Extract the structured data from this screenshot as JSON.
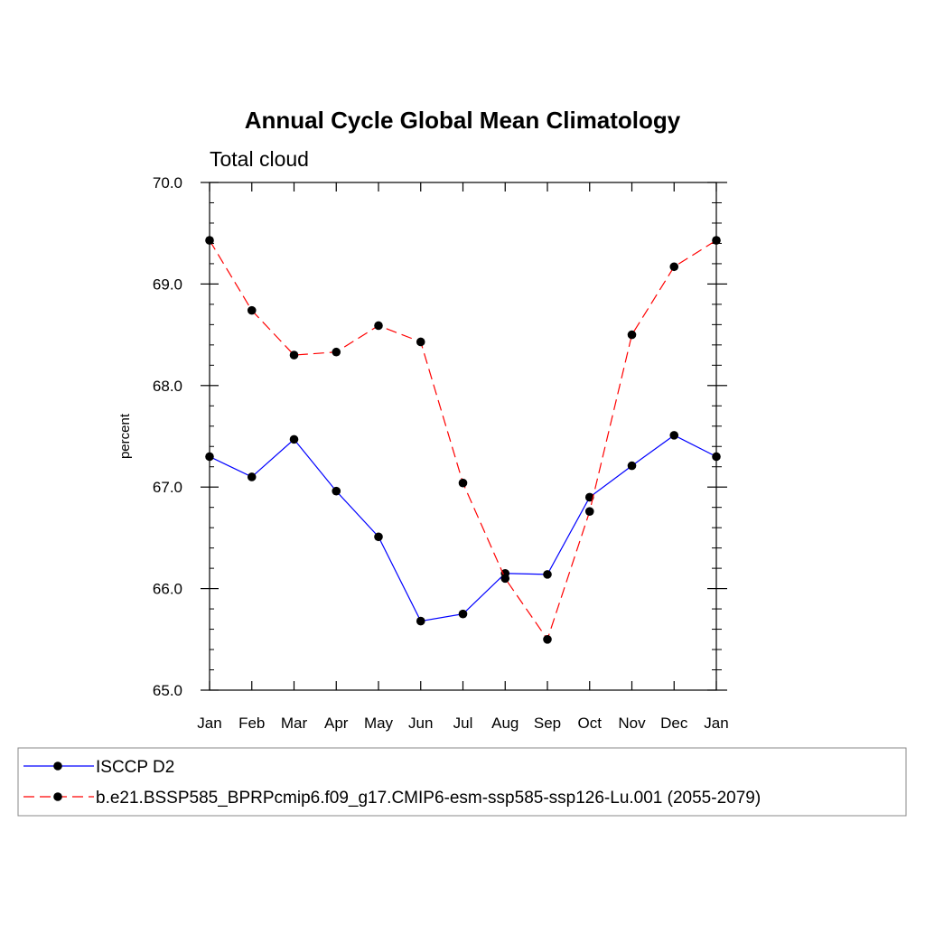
{
  "chart_data": {
    "type": "line",
    "title": "Annual Cycle Global Mean Climatology",
    "subtitle": "Total cloud",
    "xlabel": "",
    "ylabel": "percent",
    "categories": [
      "Jan",
      "Feb",
      "Mar",
      "Apr",
      "May",
      "Jun",
      "Jul",
      "Aug",
      "Sep",
      "Oct",
      "Nov",
      "Dec",
      "Jan"
    ],
    "ylim": [
      65.0,
      70.0
    ],
    "yticks": [
      "65.0",
      "66.0",
      "67.0",
      "68.0",
      "69.0",
      "70.0"
    ],
    "grid": false,
    "legend_position": "bottom",
    "series": [
      {
        "name": "ISCCP D2",
        "color": "#0000ff",
        "dash": "solid",
        "marker_color": "#000000",
        "values": [
          67.3,
          67.1,
          67.47,
          66.96,
          66.51,
          65.68,
          65.75,
          66.15,
          66.14,
          66.9,
          67.21,
          67.51,
          67.3
        ]
      },
      {
        "name": "b.e21.BSSP585_BPRPcmip6.f09_g17.CMIP6-esm-ssp585-ssp126-Lu.001 (2055-2079)",
        "color": "#ff0000",
        "dash": "dashed",
        "marker_color": "#000000",
        "values": [
          69.43,
          68.74,
          68.3,
          68.33,
          68.59,
          68.43,
          67.04,
          66.1,
          65.5,
          66.76,
          68.5,
          69.17,
          69.43
        ]
      }
    ]
  }
}
